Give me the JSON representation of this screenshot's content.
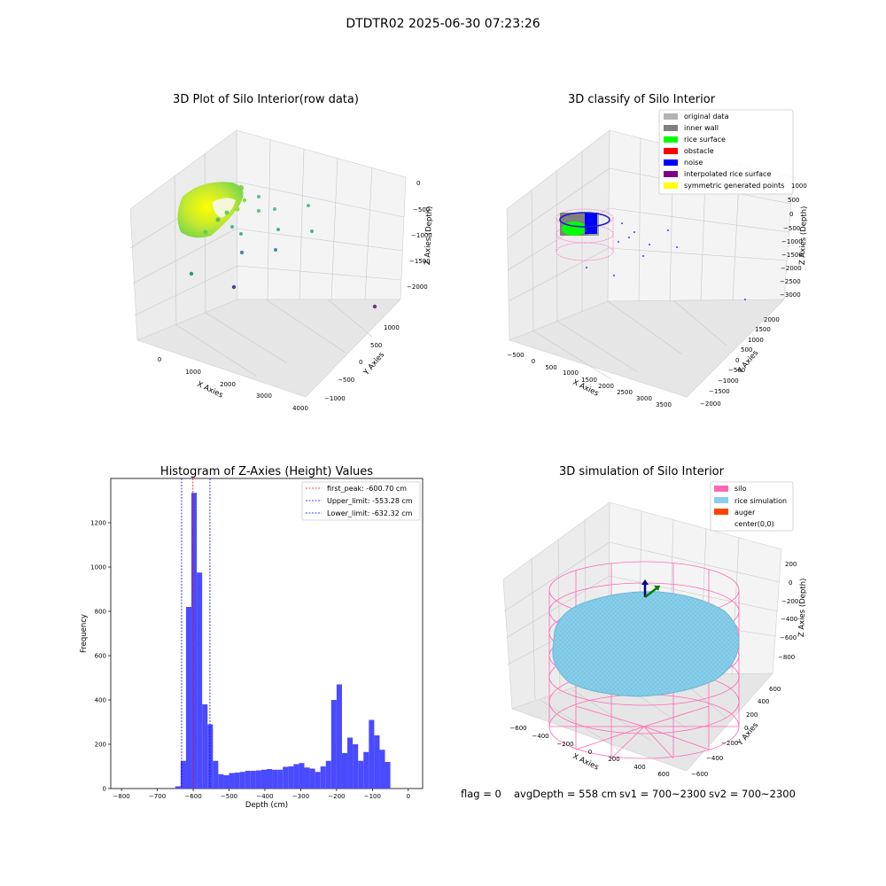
{
  "figure": {
    "suptitle": "DTDTR02 2025-06-30 07:23:26"
  },
  "status_line": {
    "flag": "flag = 0",
    "avg_depth": "avgDepth = 558 cm",
    "sv1": "sv1 = 700~2300",
    "sv2": "sv2 = 700~2300"
  },
  "colors": {
    "original_data": "#b3b3b3",
    "inner_wall": "#808080",
    "rice_surface": "#00ff00",
    "obstacle": "#ff0000",
    "noise": "#0000ff",
    "interpolated_rice_surface": "#800080",
    "symmetric_generated_points": "#ffff00",
    "silo": "#ff69b4",
    "rice_simulation": "#87ceeb",
    "auger": "#ff4500",
    "histogram_bars": "#4a4aff",
    "peak_line": "#ff0000",
    "limit_line": "#0000ff"
  },
  "chart_data": [
    {
      "type": "scatter",
      "title": "3D Plot of Silo Interior(row data)",
      "xlabel": "X Axies",
      "ylabel": "Y Axies",
      "zlabel": "Z Axies (Depth)",
      "x_ticks": [
        "0",
        "1000",
        "2000",
        "3000",
        "4000"
      ],
      "y_ticks": [
        "−1000",
        "−500",
        "0",
        "500",
        "1000"
      ],
      "z_ticks": [
        "0",
        "−500",
        "−1000",
        "−1500",
        "−2000"
      ],
      "grid": true
    },
    {
      "type": "scatter",
      "title": "3D classify of Silo Interior",
      "xlabel": "X Axies",
      "ylabel": "Y Axies",
      "zlabel": "Z Axies (Depth)",
      "x_ticks": [
        "−500",
        "0",
        "500",
        "1000",
        "1500",
        "2000",
        "2500",
        "3000",
        "3500"
      ],
      "y_ticks": [
        "−2000",
        "−1500",
        "−1000",
        "−500",
        "0",
        "500",
        "1000",
        "1500",
        "2000"
      ],
      "z_ticks": [
        "1000",
        "500",
        "0",
        "−500",
        "−1000",
        "−1500",
        "−2000",
        "−2500",
        "−3000"
      ],
      "legend": [
        "original data",
        "inner wall",
        "rice surface",
        "obstacle",
        "noise",
        "interpolated rice surface",
        "symmetric generated points"
      ],
      "legend_position": "top-right",
      "grid": true
    },
    {
      "type": "bar",
      "title": "Histogram of Z-Axies (Height) Values",
      "xlabel": "Depth (cm)",
      "ylabel": "Frequency",
      "xlim": [
        -830,
        40
      ],
      "ylim": [
        0,
        1400
      ],
      "x_ticks": [
        "−800",
        "−700",
        "−600",
        "−500",
        "−400",
        "−300",
        "−200",
        "−100",
        "0"
      ],
      "y_ticks": [
        "0",
        "200",
        "400",
        "600",
        "800",
        "1000",
        "1200"
      ],
      "bin_width": 15,
      "bin_starts": [
        -650,
        -635,
        -620,
        -605,
        -590,
        -575,
        -560,
        -545,
        -530,
        -515,
        -500,
        -485,
        -470,
        -455,
        -440,
        -425,
        -410,
        -395,
        -380,
        -365,
        -350,
        -335,
        -320,
        -305,
        -290,
        -275,
        -260,
        -245,
        -230,
        -215,
        -200,
        -185,
        -170,
        -155,
        -140,
        -125,
        -110,
        -95,
        -80,
        -65,
        -50,
        -35,
        -20
      ],
      "frequencies": [
        10,
        125,
        820,
        1335,
        975,
        380,
        290,
        125,
        65,
        60,
        70,
        72,
        75,
        80,
        80,
        82,
        85,
        88,
        85,
        85,
        98,
        100,
        110,
        115,
        95,
        90,
        75,
        100,
        125,
        400,
        470,
        160,
        230,
        200,
        125,
        165,
        310,
        240,
        175,
        120,
        0,
        0,
        0
      ],
      "vlines": [
        {
          "label": "first_peak: -600.70 cm",
          "x": -600.7,
          "color": "#ff0000"
        },
        {
          "label": "Upper_limit: -553.28 cm",
          "x": -553.28,
          "color": "#0000ff"
        },
        {
          "label": "Lower_limit: -632.32 cm",
          "x": -632.32,
          "color": "#0000ff"
        }
      ],
      "legend_position": "top-right",
      "grid": false
    },
    {
      "type": "scatter",
      "title": "3D simulation of Silo Interior",
      "xlabel": "X Axies",
      "ylabel": "Y Axies",
      "zlabel": "Z Axies (Depth)",
      "x_ticks": [
        "−600",
        "−400",
        "−200",
        "0",
        "200",
        "400",
        "600"
      ],
      "y_ticks": [
        "−600",
        "−400",
        "−200",
        "0",
        "200",
        "400",
        "600"
      ],
      "z_ticks": [
        "200",
        "0",
        "−200",
        "−400",
        "−600",
        "−800"
      ],
      "legend": [
        "silo",
        "rice simulation",
        "auger",
        "center(0,0)"
      ],
      "legend_position": "top-right",
      "grid": true
    }
  ]
}
